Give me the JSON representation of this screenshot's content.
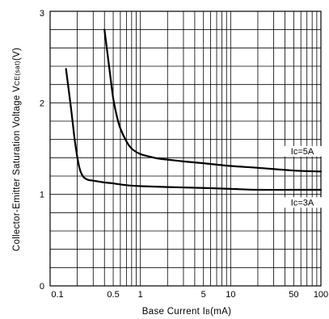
{
  "chart_data": {
    "type": "line",
    "title": "",
    "xlabel": "Base Current I",
    "xlabel_sub": "B",
    "xlabel_unit": "(mA)",
    "ylabel": "Collector-Emitter Saturation Voltage V",
    "ylabel_sub": "CE(sat)",
    "ylabel_unit": "(V)",
    "x_scale": "log",
    "xlim": [
      0.1,
      100
    ],
    "ylim": [
      0,
      3
    ],
    "grid": true,
    "x_ticks": [
      {
        "value": 0.1,
        "label": "0.1"
      },
      {
        "value": 0.5,
        "label": "0.5"
      },
      {
        "value": 1,
        "label": "1"
      },
      {
        "value": 5,
        "label": "5"
      },
      {
        "value": 10,
        "label": "10"
      },
      {
        "value": 50,
        "label": "50"
      },
      {
        "value": 100,
        "label": "100"
      }
    ],
    "y_ticks": [
      {
        "value": 0,
        "label": "0"
      },
      {
        "value": 1,
        "label": "1"
      },
      {
        "value": 2,
        "label": "2"
      },
      {
        "value": 3,
        "label": "3"
      }
    ],
    "series": [
      {
        "name": "Ic=5A",
        "x": [
          0.4,
          0.45,
          0.5,
          0.55,
          0.6,
          0.7,
          0.8,
          1.0,
          1.3,
          1.6,
          2,
          3,
          5,
          10,
          20,
          50,
          100
        ],
        "y": [
          2.8,
          2.4,
          2.05,
          1.85,
          1.72,
          1.58,
          1.5,
          1.44,
          1.41,
          1.39,
          1.38,
          1.36,
          1.34,
          1.31,
          1.29,
          1.26,
          1.25
        ]
      },
      {
        "name": "Ic=3A",
        "x": [
          0.15,
          0.17,
          0.19,
          0.21,
          0.23,
          0.26,
          0.3,
          0.4,
          0.5,
          0.7,
          1,
          2,
          5,
          10,
          20,
          50,
          100
        ],
        "y": [
          2.37,
          1.95,
          1.55,
          1.3,
          1.2,
          1.16,
          1.15,
          1.13,
          1.12,
          1.1,
          1.09,
          1.08,
          1.07,
          1.06,
          1.05,
          1.05,
          1.05
        ]
      }
    ],
    "annotations": [
      {
        "text": "Ic=5A",
        "series": "Ic=5A"
      },
      {
        "text": "Ic=3A",
        "series": "Ic=3A"
      }
    ]
  }
}
